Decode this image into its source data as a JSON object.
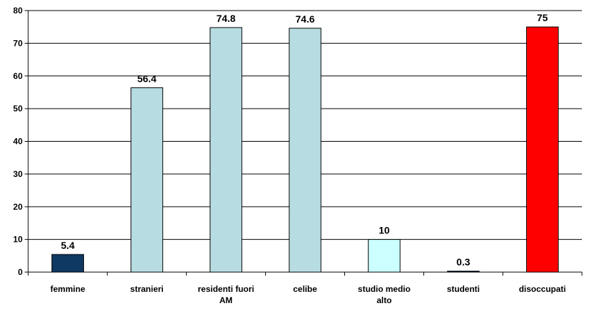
{
  "chart_data": {
    "type": "bar",
    "categories": [
      [
        "femmine"
      ],
      [
        "stranieri"
      ],
      [
        "residenti fuori",
        "AM"
      ],
      [
        "celibe"
      ],
      [
        "studio medio",
        "alto"
      ],
      [
        "studenti"
      ],
      [
        "disoccupati"
      ]
    ],
    "values": [
      5.4,
      56.4,
      74.8,
      74.6,
      10,
      0.3,
      75
    ],
    "value_labels": [
      "5.4",
      "56.4",
      "74.8",
      "74.6",
      "10",
      "0.3",
      "75"
    ],
    "bar_colors": [
      "#0f3863",
      "#b7dde2",
      "#b7dde2",
      "#b7dde2",
      "#ccffff",
      "#0f3863",
      "#ff0000"
    ],
    "ylim": [
      0,
      80
    ],
    "yticks": [
      "0",
      "10",
      "20",
      "30",
      "40",
      "50",
      "60",
      "70",
      "80"
    ],
    "grid": true,
    "legend": "none",
    "title": "",
    "xlabel": "",
    "ylabel": ""
  }
}
